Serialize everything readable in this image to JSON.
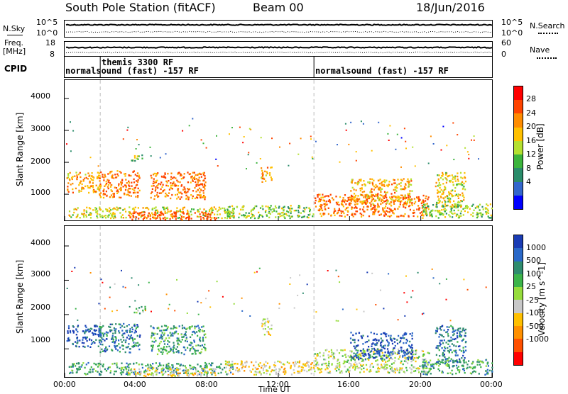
{
  "header": {
    "station": "South Pole Station (fitACF)",
    "beam": "Beam 00",
    "date": "18/Jun/2016"
  },
  "top_panels": {
    "nsky_label": "N.Sky",
    "nsky_ticks": [
      "10^5",
      "10^0"
    ],
    "nsearch_label": "N.Search",
    "nsearch_ticks": [
      "10^5",
      "10^0"
    ],
    "freq_label": "Freq.",
    "freq_unit": "[MHz]",
    "freq_ticks": [
      "18",
      "8"
    ],
    "nave_label": "Nave",
    "nave_ticks": [
      "60",
      "0"
    ],
    "cpid_label": "CPID",
    "cpid_segments": [
      {
        "text": "normalsound (fast) -157 RF",
        "start_hour": 0
      },
      {
        "text": "themis 3300 RF",
        "start_hour": 2
      },
      {
        "text": "normalsound (fast) -157 RF",
        "start_hour": 14
      }
    ]
  },
  "x_axis": {
    "label": "Time UT",
    "ticks": [
      "00:00",
      "04:00",
      "08:00",
      "12:00",
      "16:00",
      "20:00",
      "00:00"
    ]
  },
  "chart_data": [
    {
      "type": "heatmap",
      "quantity": "Power",
      "colorbar_label": "Power [dB]",
      "ylabel": "Slant Range [km]",
      "xlim": [
        0,
        24
      ],
      "ylim": [
        180,
        4600
      ],
      "yticks": [
        "4000",
        "3000",
        "2000",
        "1000"
      ],
      "colorbar_ticks": [
        "28",
        "24",
        "20",
        "16",
        "12",
        "8",
        "4"
      ],
      "colorbar_colors": [
        "#ff0000",
        "#ff4400",
        "#ff8c00",
        "#ffc000",
        "#b4e030",
        "#3cb43c",
        "#2a8c6a",
        "#3366cc",
        "#0000ff"
      ],
      "scatter_regions": [
        {
          "t0": 0.1,
          "t1": 2.0,
          "r0": 1050,
          "r1": 1700,
          "level": 20
        },
        {
          "t0": 1.9,
          "t1": 4.2,
          "r0": 900,
          "r1": 1750,
          "level": 22
        },
        {
          "t0": 3.7,
          "t1": 4.5,
          "r0": 2050,
          "r1": 2250,
          "level": 12
        },
        {
          "t0": 4.8,
          "t1": 7.9,
          "r0": 850,
          "r1": 1700,
          "level": 24
        },
        {
          "t0": 0.2,
          "t1": 9.5,
          "r0": 250,
          "r1": 600,
          "level": 16
        },
        {
          "t0": 3.5,
          "t1": 8.5,
          "r0": 200,
          "r1": 450,
          "level": 28
        },
        {
          "t0": 11.0,
          "t1": 11.6,
          "r0": 1400,
          "r1": 1900,
          "level": 18
        },
        {
          "t0": 9.0,
          "t1": 14.0,
          "r0": 250,
          "r1": 650,
          "level": 12
        },
        {
          "t0": 14.0,
          "t1": 20.5,
          "r0": 300,
          "r1": 1000,
          "level": 24
        },
        {
          "t0": 16.0,
          "t1": 19.5,
          "r0": 700,
          "r1": 1500,
          "level": 20
        },
        {
          "t0": 20.8,
          "t1": 22.5,
          "r0": 600,
          "r1": 1700,
          "level": 14
        },
        {
          "t0": 20.0,
          "t1": 24.0,
          "r0": 250,
          "r1": 700,
          "level": 12
        }
      ]
    },
    {
      "type": "heatmap",
      "quantity": "Velocity",
      "colorbar_label": "Velocity [m s^-1]",
      "ylabel": "Slant Range [km]",
      "xlim": [
        0,
        24
      ],
      "ylim": [
        180,
        4600
      ],
      "yticks": [
        "4000",
        "3000",
        "2000",
        "1000"
      ],
      "colorbar_ticks": [
        "1000",
        "500",
        "100",
        "25",
        "-25",
        "-100",
        "-500",
        "-1000"
      ],
      "colorbar_colors": [
        "#1a3cb4",
        "#2a68c8",
        "#2f8c6e",
        "#3cb44a",
        "#96dc3c",
        "#c8c8c8",
        "#ffc000",
        "#ff9000",
        "#ff5000",
        "#ff0000"
      ],
      "scatter_regions": [
        {
          "t0": 0.1,
          "t1": 2.0,
          "r0": 1050,
          "r1": 1700,
          "level": 600
        },
        {
          "t0": 1.9,
          "t1": 4.2,
          "r0": 900,
          "r1": 1750,
          "level": 500
        },
        {
          "t0": 3.7,
          "t1": 4.5,
          "r0": 2050,
          "r1": 2250,
          "level": 0
        },
        {
          "t0": 4.8,
          "t1": 7.9,
          "r0": 850,
          "r1": 1700,
          "level": 80
        },
        {
          "t0": 0.2,
          "t1": 9.5,
          "r0": 250,
          "r1": 600,
          "level": 60
        },
        {
          "t0": 3.5,
          "t1": 8.5,
          "r0": 200,
          "r1": 450,
          "level": -200
        },
        {
          "t0": 11.0,
          "t1": 11.6,
          "r0": 1400,
          "r1": 1900,
          "level": -400
        },
        {
          "t0": 9.0,
          "t1": 14.0,
          "r0": 250,
          "r1": 650,
          "level": -150
        },
        {
          "t0": 14.0,
          "t1": 20.5,
          "r0": 300,
          "r1": 1000,
          "level": -80
        },
        {
          "t0": 16.0,
          "t1": 19.5,
          "r0": 700,
          "r1": 1500,
          "level": 700
        },
        {
          "t0": 20.8,
          "t1": 22.5,
          "r0": 600,
          "r1": 1700,
          "level": 400
        },
        {
          "t0": 20.0,
          "t1": 24.0,
          "r0": 250,
          "r1": 700,
          "level": 50
        }
      ]
    }
  ]
}
